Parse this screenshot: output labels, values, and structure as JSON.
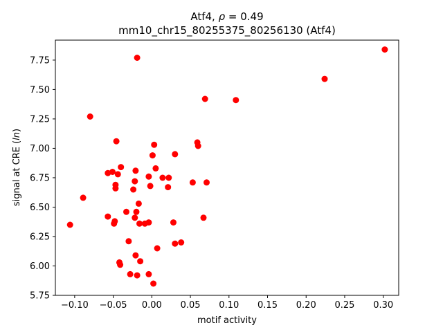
{
  "chart_data": {
    "type": "scatter",
    "title_gene": "Atf4",
    "title_rho_value": "0.49",
    "subtitle": "mm10_chr15_80255375_80256130 (Atf4)",
    "xlabel": "motif activity",
    "ylabel_prefix": "signal at CRE (",
    "ylabel_italic": "ln",
    "ylabel_suffix": ")",
    "xlim": [
      -0.125,
      0.32
    ],
    "ylim": [
      5.75,
      7.92
    ],
    "xticks": [
      -0.1,
      -0.05,
      0.0,
      0.05,
      0.1,
      0.15,
      0.2,
      0.25,
      0.3
    ],
    "xtick_labels": [
      "−0.10",
      "−0.05",
      "0.00",
      "0.05",
      "0.10",
      "0.15",
      "0.20",
      "0.25",
      "0.30"
    ],
    "yticks": [
      5.75,
      6.0,
      6.25,
      6.5,
      6.75,
      7.0,
      7.25,
      7.5,
      7.75
    ],
    "ytick_labels": [
      "5.75",
      "6.00",
      "6.25",
      "6.50",
      "6.75",
      "7.00",
      "7.25",
      "7.50",
      "7.75"
    ],
    "grid": false,
    "marker_color": "#ff0000",
    "points": [
      {
        "x": 0.302,
        "y": 7.84
      },
      {
        "x": 0.224,
        "y": 7.59
      },
      {
        "x": -0.019,
        "y": 7.77
      },
      {
        "x": 0.069,
        "y": 7.42
      },
      {
        "x": 0.109,
        "y": 7.41
      },
      {
        "x": -0.08,
        "y": 7.27
      },
      {
        "x": -0.046,
        "y": 7.06
      },
      {
        "x": 0.003,
        "y": 7.03
      },
      {
        "x": 0.059,
        "y": 7.05
      },
      {
        "x": 0.06,
        "y": 7.02
      },
      {
        "x": 0.03,
        "y": 6.95
      },
      {
        "x": 0.001,
        "y": 6.94
      },
      {
        "x": -0.04,
        "y": 6.84
      },
      {
        "x": 0.005,
        "y": 6.83
      },
      {
        "x": -0.021,
        "y": 6.81
      },
      {
        "x": -0.051,
        "y": 6.8
      },
      {
        "x": -0.057,
        "y": 6.79
      },
      {
        "x": -0.044,
        "y": 6.78
      },
      {
        "x": -0.004,
        "y": 6.76
      },
      {
        "x": 0.014,
        "y": 6.75
      },
      {
        "x": 0.022,
        "y": 6.75
      },
      {
        "x": -0.022,
        "y": 6.72
      },
      {
        "x": 0.053,
        "y": 6.71
      },
      {
        "x": 0.071,
        "y": 6.71
      },
      {
        "x": -0.047,
        "y": 6.69
      },
      {
        "x": -0.002,
        "y": 6.68
      },
      {
        "x": 0.021,
        "y": 6.67
      },
      {
        "x": -0.047,
        "y": 6.66
      },
      {
        "x": -0.024,
        "y": 6.65
      },
      {
        "x": -0.089,
        "y": 6.58
      },
      {
        "x": -0.017,
        "y": 6.53
      },
      {
        "x": -0.033,
        "y": 6.46
      },
      {
        "x": -0.02,
        "y": 6.46
      },
      {
        "x": -0.057,
        "y": 6.42
      },
      {
        "x": -0.022,
        "y": 6.41
      },
      {
        "x": 0.067,
        "y": 6.41
      },
      {
        "x": -0.048,
        "y": 6.38
      },
      {
        "x": -0.049,
        "y": 6.36
      },
      {
        "x": -0.004,
        "y": 6.37
      },
      {
        "x": -0.016,
        "y": 6.36
      },
      {
        "x": -0.009,
        "y": 6.36
      },
      {
        "x": 0.028,
        "y": 6.37
      },
      {
        "x": -0.106,
        "y": 6.35
      },
      {
        "x": -0.03,
        "y": 6.21
      },
      {
        "x": 0.038,
        "y": 6.2
      },
      {
        "x": 0.03,
        "y": 6.19
      },
      {
        "x": 0.007,
        "y": 6.15
      },
      {
        "x": -0.021,
        "y": 6.09
      },
      {
        "x": -0.015,
        "y": 6.04
      },
      {
        "x": -0.042,
        "y": 6.03
      },
      {
        "x": -0.041,
        "y": 6.01
      },
      {
        "x": -0.028,
        "y": 5.93
      },
      {
        "x": -0.019,
        "y": 5.92
      },
      {
        "x": -0.004,
        "y": 5.93
      },
      {
        "x": 0.002,
        "y": 5.85
      }
    ]
  }
}
